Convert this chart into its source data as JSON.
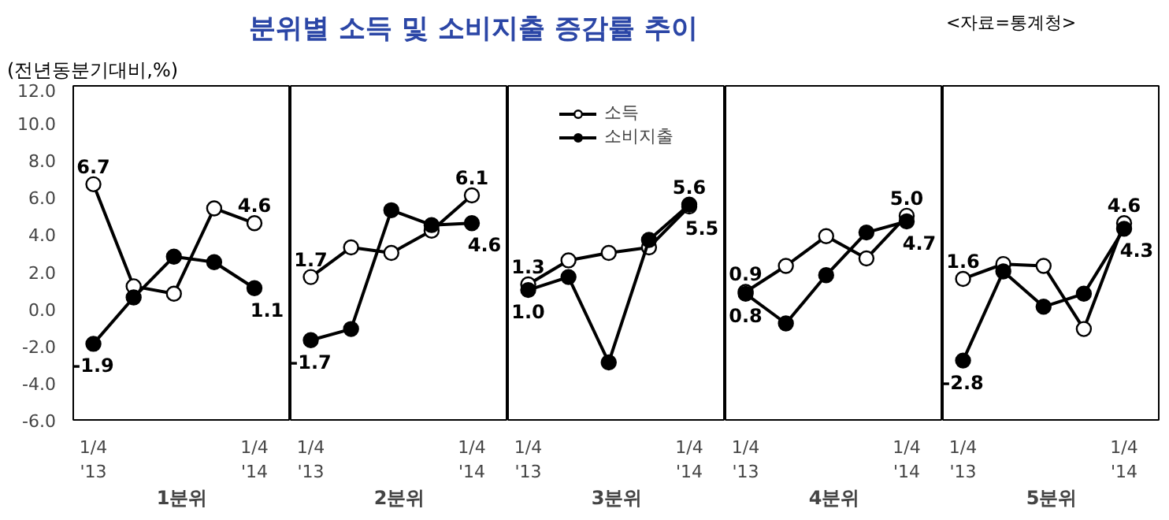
{
  "chart_data": [
    {
      "type": "line",
      "ylabel": "(전년동분기대비,%)",
      "xlabel": "1분위",
      "categories": [
        "1/4\n'13",
        null,
        null,
        null,
        "1/4\n'14"
      ],
      "ylim": [
        -6,
        12
      ],
      "yticks": [
        {
          "value": -6,
          "label": "-6.0"
        },
        {
          "value": -4,
          "label": "-4.0"
        },
        {
          "value": -2,
          "label": "-2.0"
        },
        {
          "value": 0,
          "label": "0.0"
        },
        {
          "value": 2,
          "label": "2.0"
        },
        {
          "value": 4,
          "label": "4.0"
        },
        {
          "value": 6,
          "label": "6.0"
        },
        {
          "value": 8,
          "label": "8.0"
        },
        {
          "value": 10,
          "label": "10.0"
        },
        {
          "value": 12,
          "label": "12.0"
        }
      ],
      "marker": "circle",
      "series": [
        {
          "color": "#000000",
          "values": [
            6.7,
            1.2,
            0.8,
            5.4,
            4.6
          ],
          "value_labels": [
            "6.7",
            null,
            null,
            null,
            "4.6"
          ]
        },
        {
          "color": "#000000",
          "values": [
            -1.9,
            0.6,
            2.8,
            2.5,
            1.1
          ],
          "value_labels": [
            "-1.9",
            null,
            null,
            null,
            "1.1"
          ]
        }
      ]
    },
    {
      "type": "line",
      "title": "분위별 소득 및 소비지출 증감률 추이",
      "xlabel": "2분위",
      "categories": [
        "1/4\n'13",
        null,
        null,
        null,
        "1/4\n'14"
      ],
      "ylim": [
        -6,
        12
      ],
      "tick_labels": "x",
      "marker": "circle",
      "series": [
        {
          "color": "#000000",
          "values": [
            1.7,
            3.3,
            3.0,
            4.2,
            6.1
          ],
          "value_labels": [
            "1.7",
            null,
            null,
            null,
            "6.1"
          ]
        },
        {
          "color": "#000000",
          "values": [
            -1.7,
            -1.1,
            5.3,
            4.5,
            4.6
          ],
          "value_labels": [
            "-1.7",
            null,
            null,
            null,
            "4.6"
          ]
        }
      ]
    },
    {
      "type": "line",
      "xlabel": "3분위",
      "categories": [
        "1/4\n'13",
        null,
        null,
        null,
        "1/4\n'14"
      ],
      "ylim": [
        -6,
        12
      ],
      "tick_labels": "x",
      "marker": "circle",
      "legend": "top",
      "series": [
        {
          "name": "소득",
          "color": "#000000",
          "values": [
            1.3,
            2.6,
            3.0,
            3.3,
            5.5
          ],
          "value_labels": [
            "1.3",
            null,
            null,
            null,
            "5.5"
          ]
        },
        {
          "name": "소비지출",
          "color": "#000000",
          "values": [
            1.0,
            1.7,
            -2.9,
            3.7,
            5.6
          ],
          "value_labels": [
            "1.0",
            null,
            null,
            null,
            "5.6"
          ]
        }
      ]
    },
    {
      "type": "line",
      "xlabel": "4분위",
      "categories": [
        "1/4\n'13",
        null,
        null,
        null,
        "1/4\n'14"
      ],
      "ylim": [
        -6,
        12
      ],
      "tick_labels": "x",
      "marker": "circle",
      "series": [
        {
          "color": "#000000",
          "values": [
            0.9,
            2.3,
            3.9,
            2.7,
            5.0
          ],
          "value_labels": [
            "0.9",
            null,
            null,
            null,
            "5.0"
          ]
        },
        {
          "color": "#000000",
          "values": [
            0.8,
            -0.8,
            1.8,
            4.1,
            4.7
          ],
          "value_labels": [
            "0.8",
            null,
            null,
            null,
            "4.7"
          ]
        }
      ]
    },
    {
      "type": "line",
      "annotations": [
        "<자료=통계청>"
      ],
      "xlabel": "5분위",
      "categories": [
        "1/4\n'13",
        null,
        null,
        null,
        "1/4\n'14"
      ],
      "ylim": [
        -6,
        12
      ],
      "tick_labels": "x",
      "marker": "circle",
      "series": [
        {
          "color": "#000000",
          "values": [
            1.6,
            2.4,
            2.3,
            -1.1,
            4.6
          ],
          "value_labels": [
            "1.6",
            null,
            null,
            null,
            "4.6"
          ]
        },
        {
          "color": "#000000",
          "values": [
            -2.8,
            2.0,
            0.1,
            0.8,
            4.3
          ],
          "value_labels": [
            "-2.8",
            null,
            null,
            null,
            "4.3"
          ]
        }
      ]
    }
  ]
}
